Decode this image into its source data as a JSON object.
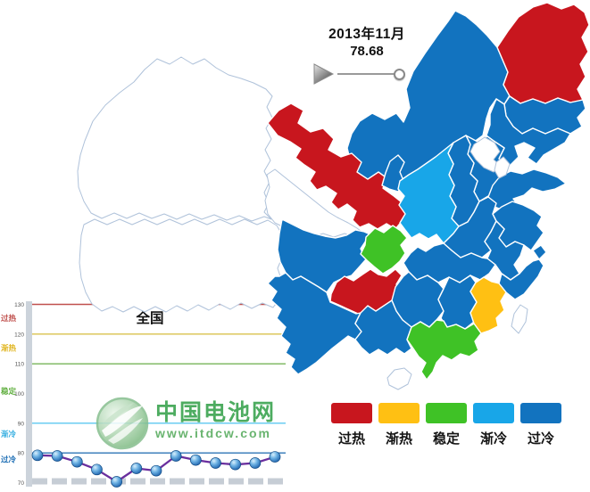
{
  "title_overlay": {
    "date": "2013年11月",
    "value": "78.68"
  },
  "player": {
    "play_icon": "play-triangle",
    "slider_position": "right-end"
  },
  "status_colors": {
    "过热": "#C8161E",
    "渐热": "#FFC013",
    "稳定": "#3FC226",
    "渐冷": "#18A6E8",
    "过冷": "#1273BF",
    "无数据": "#FFFFFF"
  },
  "legend": [
    {
      "label": "过热",
      "color": "#C8161E"
    },
    {
      "label": "渐热",
      "color": "#FFC013"
    },
    {
      "label": "稳定",
      "color": "#3FC226"
    },
    {
      "label": "渐冷",
      "color": "#18A6E8"
    },
    {
      "label": "过冷",
      "color": "#1273BF"
    }
  ],
  "map": {
    "provinces": [
      {
        "id": "xinjiang",
        "name": "新疆",
        "status": "无数据"
      },
      {
        "id": "xizang",
        "name": "西藏",
        "status": "无数据"
      },
      {
        "id": "qinghai",
        "name": "青海",
        "status": "无数据"
      },
      {
        "id": "neimenggu",
        "name": "内蒙古",
        "status": "过冷"
      },
      {
        "id": "heilongjiang",
        "name": "黑龙江",
        "status": "过热"
      },
      {
        "id": "jilin",
        "name": "吉林",
        "status": "过冷"
      },
      {
        "id": "liaoning",
        "name": "辽宁",
        "status": "过冷"
      },
      {
        "id": "hebei",
        "name": "河北",
        "status": "过冷"
      },
      {
        "id": "shanxi",
        "name": "山西",
        "status": "过冷"
      },
      {
        "id": "gansu",
        "name": "甘肃",
        "status": "过热"
      },
      {
        "id": "ningxia",
        "name": "宁夏",
        "status": "过冷"
      },
      {
        "id": "shaanxi",
        "name": "陕西",
        "status": "渐冷"
      },
      {
        "id": "shandong",
        "name": "山东",
        "status": "过冷"
      },
      {
        "id": "henan",
        "name": "河南",
        "status": "过冷"
      },
      {
        "id": "jiangsu",
        "name": "江苏",
        "status": "过冷"
      },
      {
        "id": "anhui",
        "name": "安徽",
        "status": "过冷"
      },
      {
        "id": "shanghai",
        "name": "上海",
        "status": "过冷"
      },
      {
        "id": "zhejiang",
        "name": "浙江",
        "status": "过冷"
      },
      {
        "id": "hubei",
        "name": "湖北",
        "status": "过冷"
      },
      {
        "id": "sichuan",
        "name": "四川",
        "status": "过冷"
      },
      {
        "id": "chongqing",
        "name": "重庆",
        "status": "稳定"
      },
      {
        "id": "guizhou",
        "name": "贵州",
        "status": "过热"
      },
      {
        "id": "yunnan",
        "name": "云南",
        "status": "过冷"
      },
      {
        "id": "hunan",
        "name": "湖南",
        "status": "过冷"
      },
      {
        "id": "jiangxi",
        "name": "江西",
        "status": "过冷"
      },
      {
        "id": "fujian",
        "name": "福建",
        "status": "渐热"
      },
      {
        "id": "guangxi",
        "name": "广西",
        "status": "过冷"
      },
      {
        "id": "guangdong",
        "name": "广东",
        "status": "稳定"
      },
      {
        "id": "beijing",
        "name": "北京",
        "status": "无数据"
      },
      {
        "id": "tianjin",
        "name": "天津",
        "status": "无数据"
      },
      {
        "id": "hainan",
        "name": "海南",
        "status": "无数据"
      },
      {
        "id": "taiwan",
        "name": "台湾",
        "status": "无数据"
      }
    ]
  },
  "chart_data": {
    "type": "line",
    "title": "全国",
    "current_period": "2013年11月",
    "current_value": 78.68,
    "ylim": [
      70,
      130
    ],
    "y_ticks": [
      70,
      80,
      90,
      100,
      110,
      120,
      130
    ],
    "grid": "horizontal-threshold-lines",
    "legend_position": "none",
    "gridlines": [
      {
        "value": 130,
        "color": "#C0504D"
      },
      {
        "value": 120,
        "color": "#D9C24E"
      },
      {
        "value": 110,
        "color": "#77B55A"
      },
      {
        "value": 90,
        "color": "#5BC8F0"
      },
      {
        "value": 80,
        "color": "#2E75B6"
      }
    ],
    "zone_labels": [
      {
        "label": "过热",
        "color": "#C0504D",
        "value": 125.3
      },
      {
        "label": "渐热",
        "color": "#E0B520",
        "value": 115.3
      },
      {
        "label": "稳定",
        "color": "#5FAE3E",
        "value": 100.8
      },
      {
        "label": "渐冷",
        "color": "#35AEE0",
        "value": 86.3
      },
      {
        "label": "过冷",
        "color": "#1F6FB5",
        "value": 77.8
      }
    ],
    "line_color": "#6A2F9E",
    "values": [
      79.2,
      79.0,
      77.0,
      74.4,
      70.3,
      74.8,
      74.0,
      79.0,
      77.6,
      76.6,
      76.1,
      76.6,
      78.68
    ]
  },
  "watermark": {
    "name": "中国电池网",
    "url": "www.itdcw.com"
  }
}
